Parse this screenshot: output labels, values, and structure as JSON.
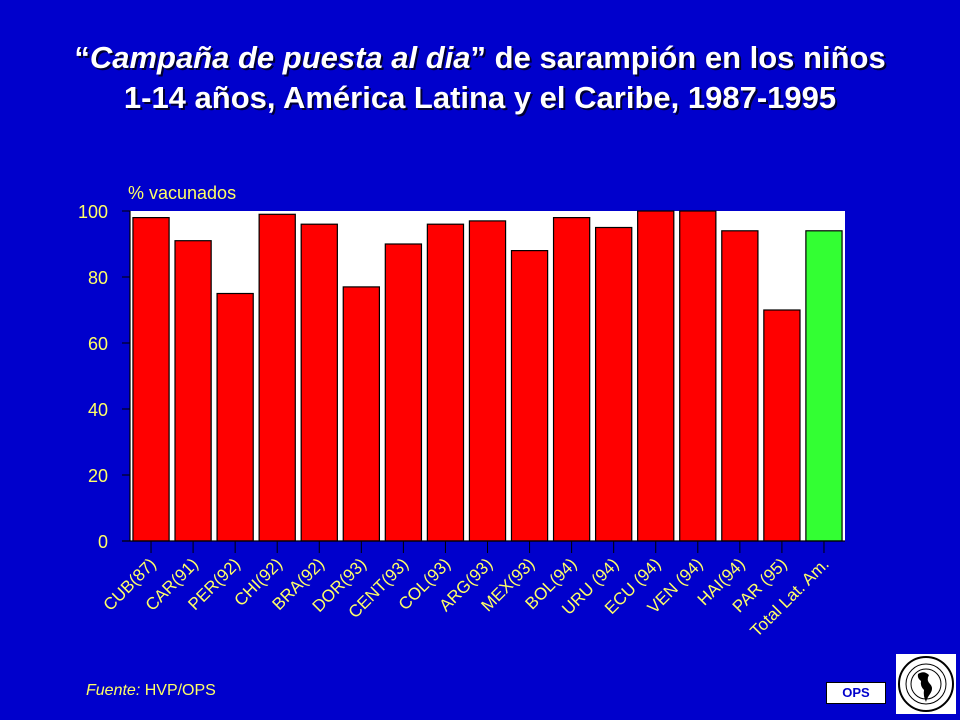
{
  "title": {
    "open_quote": "“",
    "italic_part": "Campaña de puesta al dia",
    "close_quote": "”",
    "rest_line1": " de sarampión en los niños",
    "line2": "1-14 años, América Latina y el Caribe, 1987-1995"
  },
  "source": {
    "label": "Fuente:",
    "text": " HVP/OPS"
  },
  "ops_label": "OPS",
  "colors": {
    "background": "#0000cc",
    "bar": "#ff0000",
    "highlight_bar": "#33ff33",
    "text": "#ffff66",
    "plot_bg": "#ffffff"
  },
  "chart_data": {
    "type": "bar",
    "ylabel": "% vacunados",
    "ylim": [
      0,
      100
    ],
    "yticks": [
      0,
      20,
      40,
      60,
      80,
      100
    ],
    "grid": false,
    "categories": [
      "CUB(87)",
      "CAR(91)",
      "PER(92)",
      "CHI(92)",
      "BRA(92)",
      "DOR(93)",
      "CENT(93)",
      "COL(93)",
      "ARG(93)",
      "MEX(93)",
      "BOL(94)",
      "URU (94)",
      "ECU (94)",
      "VEN (94)",
      "HAI(94)",
      "PAR (95)",
      "Total Lat. Am."
    ],
    "values": [
      98,
      91,
      75,
      99,
      96,
      77,
      90,
      96,
      97,
      88,
      98,
      95,
      100,
      100,
      94,
      70,
      94
    ],
    "highlight": [
      "Total Lat. Am."
    ]
  }
}
